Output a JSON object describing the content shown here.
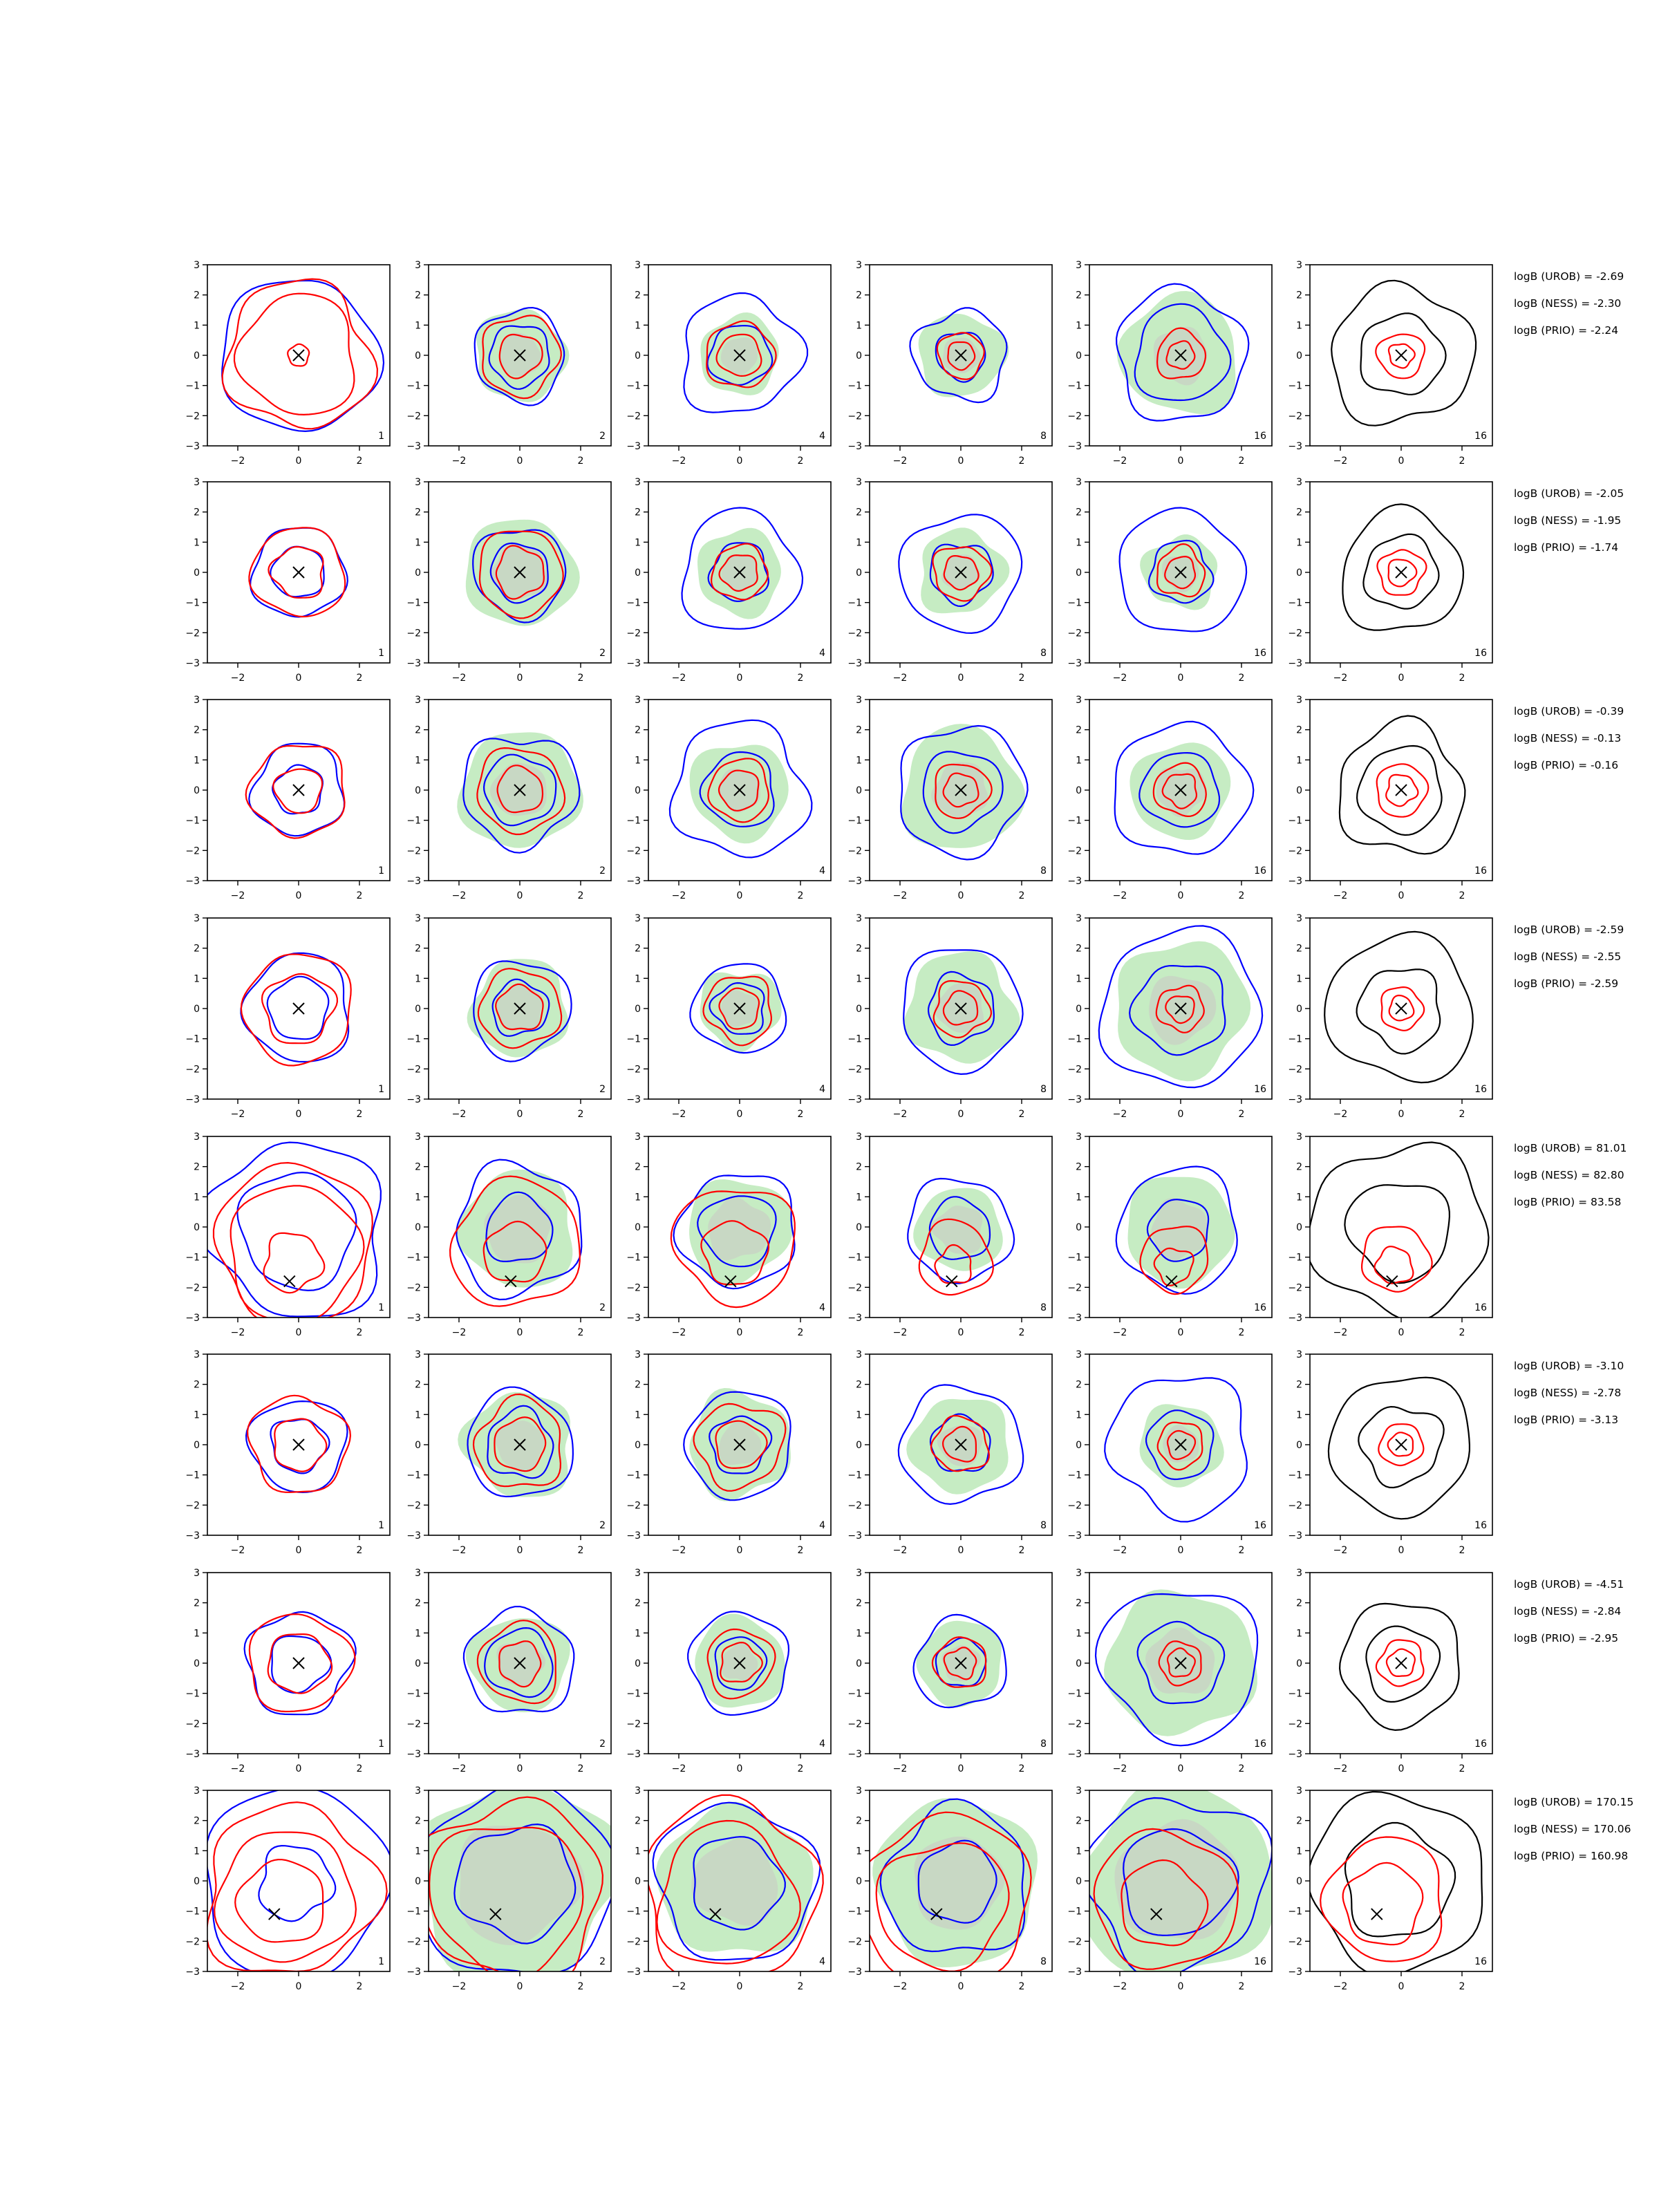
{
  "chart_data": {
    "type": "contour",
    "grid": "8 rows x 6 panels",
    "xlim": [
      -3,
      3
    ],
    "ylim": [
      -3,
      3
    ],
    "xticks": [
      -2,
      0,
      2
    ],
    "yticks": [
      -3,
      -2,
      -1,
      0,
      1,
      2,
      3
    ],
    "panel_labels": [
      "1",
      "2",
      "4",
      "8",
      "16",
      "16"
    ],
    "colors": {
      "blue": "#0000ff",
      "red": "#ff0000",
      "black": "#000000",
      "fill_outer": "#c6ecc3",
      "fill_inner": "#c8d8c4",
      "truth_marker": "#000000"
    },
    "rows": [
      {
        "truth": [
          0.0,
          0.0
        ],
        "annotations": [
          "logB (UROB) = -2.69",
          "logB (NESS) = -2.30",
          "logB (PRIO) = -2.24"
        ],
        "panels": [
          {
            "blue": [
              2.55
            ],
            "red": [
              2.4,
              1.95,
              0.35
            ],
            "fill": []
          },
          {
            "blue": [
              1.5,
              1.0
            ],
            "red": [
              1.3,
              0.7
            ],
            "fill": [
              1.5,
              0.7
            ]
          },
          {
            "blue": [
              1.95,
              1.0
            ],
            "red": [
              1.1,
              0.7
            ],
            "fill": [
              1.3,
              0.6
            ]
          },
          {
            "blue": [
              1.5,
              0.8
            ],
            "red": [
              0.75,
              0.45
            ],
            "fill": [
              1.4,
              0.6
            ]
          },
          {
            "blue": [
              2.15,
              1.55
            ],
            "red": [
              0.8,
              0.45
            ],
            "fill": [
              1.95,
              0.9
            ]
          },
          {
            "black": [
              2.3,
              1.35
            ],
            "red": [
              0.75,
              0.4
            ],
            "fill": []
          }
        ]
      },
      {
        "truth": [
          0.0,
          0.0
        ],
        "annotations": [
          "logB (UROB) = -2.05",
          "logB (NESS) = -1.95",
          "logB (PRIO) = -1.74"
        ],
        "panels": [
          {
            "blue": [
              1.5,
              0.85
            ],
            "red": [
              1.5,
              0.85
            ],
            "fill": []
          },
          {
            "blue": [
              1.5,
              0.95
            ],
            "red": [
              1.4,
              0.8
            ],
            "fill": [
              1.8,
              0.9
            ]
          },
          {
            "blue": [
              1.95,
              0.95
            ],
            "red": [
              0.9,
              0.6
            ],
            "fill": [
              1.4,
              0.6
            ]
          },
          {
            "blue": [
              1.95,
              1.0
            ],
            "red": [
              0.9,
              0.55
            ],
            "fill": [
              1.4,
              0.6
            ]
          },
          {
            "blue": [
              2.05,
              1.0
            ],
            "red": [
              0.8,
              0.5
            ],
            "fill": [
              1.2,
              0.6
            ]
          },
          {
            "black": [
              2.0,
              1.2
            ],
            "red": [
              0.75,
              0.45
            ],
            "fill": []
          }
        ]
      },
      {
        "truth": [
          0.0,
          0.0
        ],
        "annotations": [
          "logB (UROB) = -0.39",
          "logB (NESS) = -0.13",
          "logB (PRIO) = -0.16"
        ],
        "panels": [
          {
            "blue": [
              1.5,
              0.8
            ],
            "red": [
              1.55,
              0.75
            ],
            "fill": []
          },
          {
            "blue": [
              1.85,
              1.15
            ],
            "red": [
              1.4,
              0.75
            ],
            "fill": [
              1.95,
              0.9
            ]
          },
          {
            "blue": [
              2.2,
              1.2
            ],
            "red": [
              1.0,
              0.65
            ],
            "fill": [
              1.6,
              0.7
            ]
          },
          {
            "blue": [
              2.1,
              1.3
            ],
            "red": [
              0.9,
              0.55
            ],
            "fill": [
              2.0,
              0.9
            ]
          },
          {
            "blue": [
              2.2,
              1.25
            ],
            "red": [
              0.85,
              0.55
            ],
            "fill": [
              1.6,
              0.8
            ]
          },
          {
            "black": [
              2.1,
              1.4
            ],
            "red": [
              0.85,
              0.5
            ],
            "fill": []
          }
        ]
      },
      {
        "truth": [
          0.0,
          0.0
        ],
        "annotations": [
          "logB (UROB) = -2.59",
          "logB (NESS) = -2.55",
          "logB (PRIO) = -2.59"
        ],
        "panels": [
          {
            "blue": [
              1.75,
              1.0
            ],
            "red": [
              1.8,
              1.15
            ],
            "fill": []
          },
          {
            "blue": [
              1.6,
              0.9
            ],
            "red": [
              1.3,
              0.75
            ],
            "fill": [
              1.6,
              0.75
            ]
          },
          {
            "blue": [
              1.5,
              0.85
            ],
            "red": [
              1.1,
              0.65
            ],
            "fill": [
              1.3,
              0.6
            ]
          },
          {
            "blue": [
              2.0,
              1.1
            ],
            "red": [
              0.9,
              0.55
            ],
            "fill": [
              1.8,
              0.8
            ]
          },
          {
            "blue": [
              2.6,
              1.5
            ],
            "red": [
              0.75,
              0.45
            ],
            "fill": [
              2.2,
              1.1
            ]
          },
          {
            "black": [
              2.4,
              1.35
            ],
            "red": [
              0.7,
              0.4
            ],
            "fill": []
          }
        ]
      },
      {
        "truth": [
          -0.3,
          -1.8
        ],
        "annotations": [
          "logB (UROB) = 81.01",
          "logB (NESS) = 82.80",
          "logB (PRIO) = 83.58"
        ],
        "panels": [
          {
            "blue": [
              2.9,
              1.9
            ],
            "red": [
              2.6,
              2.2,
              0.95
            ],
            "fill": []
          },
          {
            "blue": [
              2.1,
              1.1
            ],
            "red": [
              2.1,
              1.0
            ],
            "fill": [
              1.9,
              1.1
            ]
          },
          {
            "blue": [
              1.9,
              1.2
            ],
            "red": [
              1.95,
              1.05
            ],
            "fill": [
              1.7,
              1.0
            ]
          },
          {
            "blue": [
              1.7,
              1.0
            ],
            "red": [
              1.2,
              0.6
            ],
            "fill": [
              1.4,
              0.8
            ]
          },
          {
            "blue": [
              2.0,
              1.0
            ],
            "red": [
              1.1,
              0.6
            ],
            "fill": [
              1.8,
              0.95
            ]
          },
          {
            "black": [
              2.85,
              1.65
            ],
            "red": [
              1.1,
              0.6
            ],
            "fill": []
          }
        ]
      },
      {
        "truth": [
          0.0,
          0.0
        ],
        "annotations": [
          "logB (UROB) = -3.10",
          "logB (NESS) = -2.78",
          "logB (PRIO) = -3.13"
        ],
        "panels": [
          {
            "blue": [
              1.55,
              0.9
            ],
            "red": [
              1.6,
              0.85
            ],
            "fill": []
          },
          {
            "blue": [
              1.75,
              1.1
            ],
            "red": [
              1.45,
              0.85
            ],
            "fill": [
              1.75,
              0.8
            ]
          },
          {
            "blue": [
              1.75,
              0.95
            ],
            "red": [
              1.4,
              0.8
            ],
            "fill": [
              1.7,
              0.7
            ]
          },
          {
            "blue": [
              1.95,
              0.95
            ],
            "red": [
              0.9,
              0.55
            ],
            "fill": [
              1.6,
              0.7
            ]
          },
          {
            "blue": [
              2.3,
              1.1
            ],
            "red": [
              0.75,
              0.45
            ],
            "fill": [
              1.35,
              0.6
            ]
          },
          {
            "black": [
              2.3,
              1.3
            ],
            "red": [
              0.7,
              0.4
            ],
            "fill": []
          }
        ]
      },
      {
        "truth": [
          0.0,
          0.0
        ],
        "annotations": [
          "logB (UROB) = -4.51",
          "logB (NESS) = -2.84",
          "logB (PRIO) = -2.95"
        ],
        "panels": [
          {
            "blue": [
              1.7,
              0.95
            ],
            "red": [
              1.65,
              1.0
            ],
            "fill": []
          },
          {
            "blue": [
              1.75,
              1.1
            ],
            "red": [
              1.3,
              0.7
            ],
            "fill": [
              1.6,
              0.75
            ]
          },
          {
            "blue": [
              1.65,
              0.85
            ],
            "red": [
              1.1,
              0.65
            ],
            "fill": [
              1.5,
              0.6
            ]
          },
          {
            "blue": [
              1.5,
              0.8
            ],
            "red": [
              0.85,
              0.5
            ],
            "fill": [
              1.4,
              0.6
            ]
          },
          {
            "blue": [
              2.55,
              1.35
            ],
            "red": [
              0.7,
              0.45
            ],
            "fill": [
              2.4,
              1.1
            ]
          },
          {
            "black": [
              2.0,
              1.2
            ],
            "red": [
              0.75,
              0.45
            ],
            "fill": []
          }
        ]
      },
      {
        "truth": [
          -0.8,
          -1.1
        ],
        "annotations": [
          "logB (UROB) = 170.15",
          "logB (NESS) = 170.06",
          "logB (PRIO) = 160.98"
        ],
        "panels": [
          {
            "blue": [
              3.1,
              1.2
            ],
            "red": [
              2.8,
              2.2,
              1.4
            ],
            "fill": []
          },
          {
            "blue": [
              3.2,
              1.9
            ],
            "red": [
              3.0,
              2.5
            ],
            "fill": [
              3.3,
              2.0
            ]
          },
          {
            "blue": [
              2.6,
              1.5
            ],
            "red": [
              2.9,
              2.3
            ],
            "fill": [
              2.5,
              1.4
            ]
          },
          {
            "blue": [
              2.4,
              1.3
            ],
            "red": [
              2.8,
              2.1
            ],
            "fill": [
              2.7,
              1.5
            ]
          },
          {
            "blue": [
              2.9,
              1.8
            ],
            "red": [
              2.3,
              1.4
            ],
            "fill": [
              3.2,
              2.0
            ]
          },
          {
            "black": [
              2.9,
              1.8
            ],
            "red": [
              2.0,
              1.3
            ],
            "fill": []
          }
        ]
      }
    ]
  }
}
